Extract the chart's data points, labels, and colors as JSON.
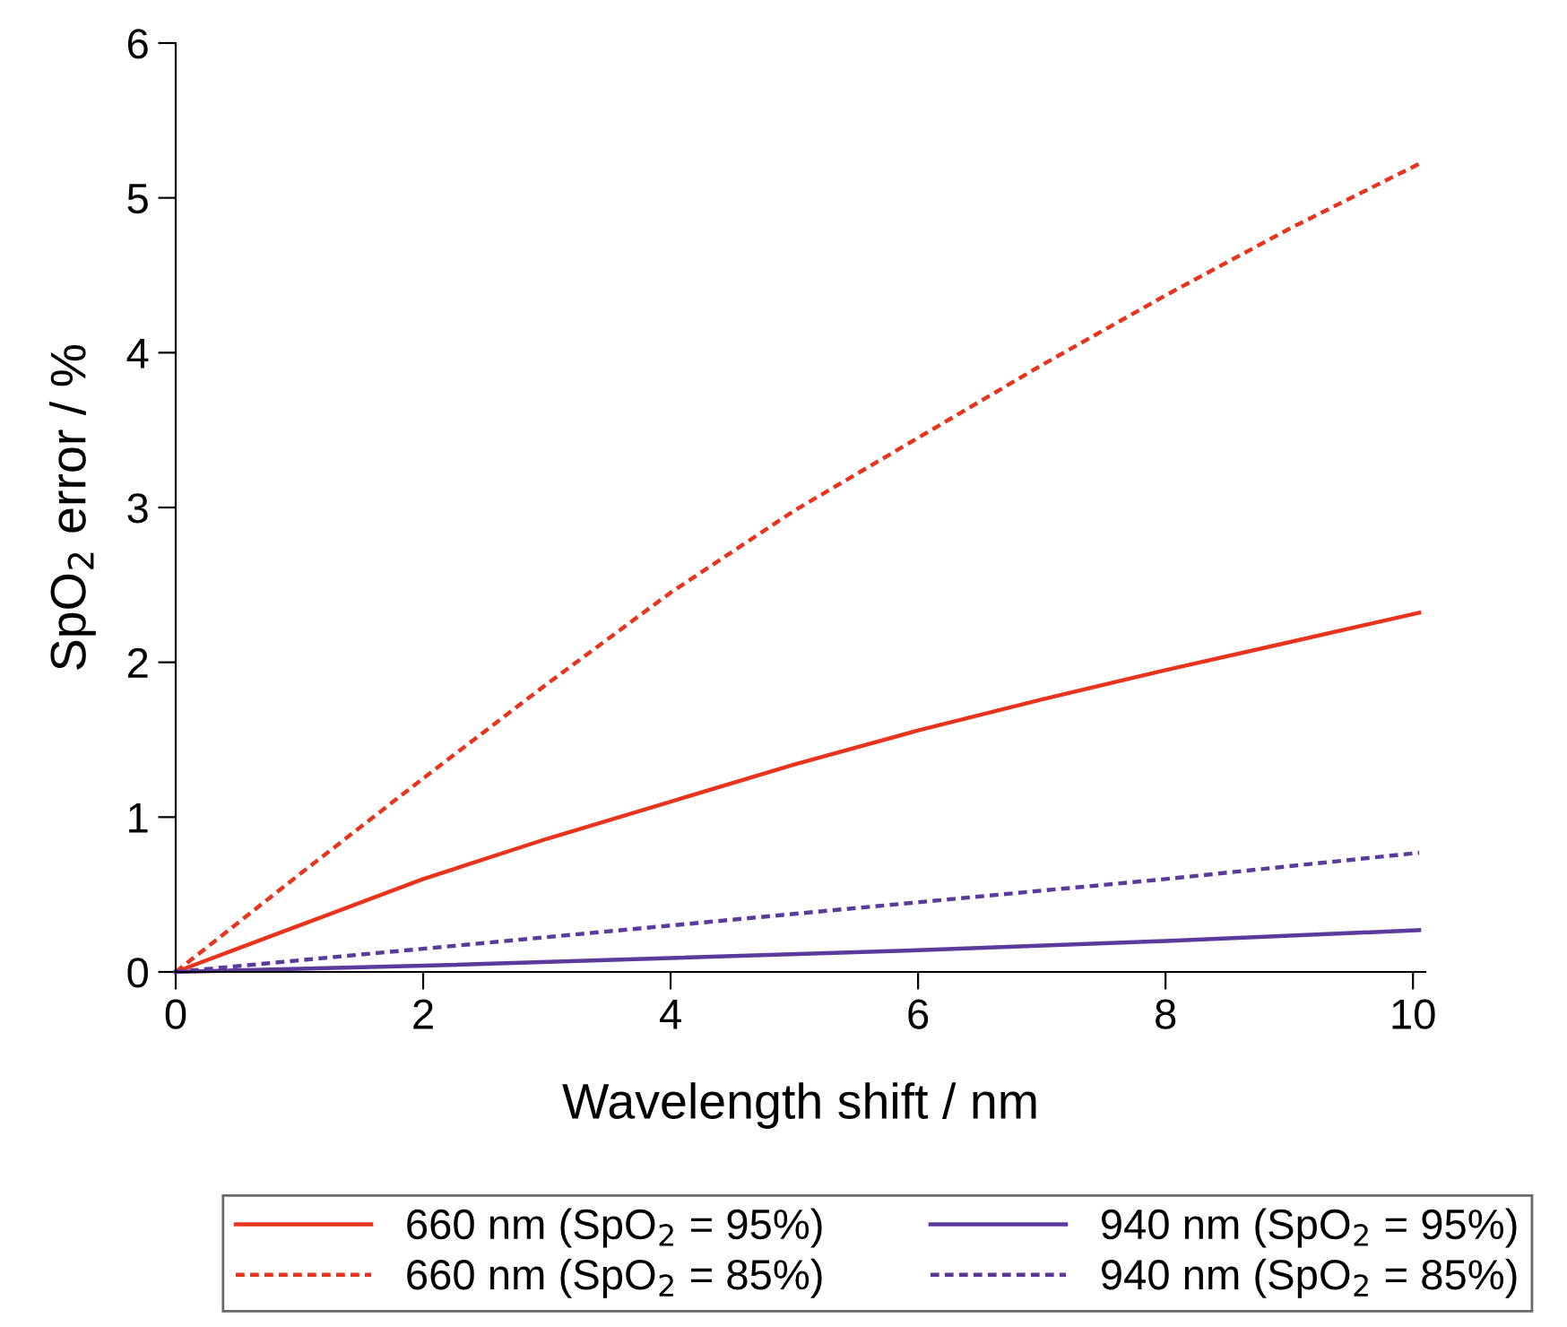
{
  "chart_data": {
    "type": "line",
    "xlabel": "Wavelength shift / nm",
    "ylabel": "SpO$_{2}$ error / %",
    "xlim": [
      0,
      10.1
    ],
    "xticks": [
      0,
      2,
      4,
      6,
      8,
      10
    ],
    "ylim": [
      0,
      6
    ],
    "yticks": [
      0,
      1,
      2,
      3,
      4,
      5,
      6
    ],
    "grid": false,
    "legend": "bottom",
    "marker": "none",
    "series": [
      {
        "name": "660 nm (SpO$_{2}$ = 95%)",
        "color": "#e8341c",
        "line_style": "solid",
        "x": [
          0,
          1,
          2,
          3,
          4,
          5,
          6,
          7,
          8,
          9,
          10.05
        ],
        "values": [
          0,
          0.3,
          0.6,
          0.86,
          1.1,
          1.34,
          1.56,
          1.76,
          1.95,
          2.13,
          2.32
        ]
      },
      {
        "name": "660 nm (SpO$_{2}$ = 85%)",
        "color": "#e8341c",
        "line_style": "dashed",
        "x": [
          0,
          1,
          2,
          3,
          4,
          5,
          6,
          7,
          8,
          9,
          10.05
        ],
        "values": [
          0,
          0.63,
          1.25,
          1.86,
          2.45,
          2.98,
          3.45,
          3.92,
          4.37,
          4.8,
          5.22
        ]
      },
      {
        "name": "940 nm (SpO$_{2}$ = 95%)",
        "color": "#5b3a9b",
        "line_style": "solid",
        "x": [
          0,
          2,
          4,
          6,
          8,
          10.05
        ],
        "values": [
          0,
          0.04,
          0.09,
          0.14,
          0.2,
          0.27
        ]
      },
      {
        "name": "940 nm (SpO$_{2}$ = 85%)",
        "color": "#5b3a9b",
        "line_style": "dashed",
        "x": [
          0,
          2,
          4,
          6,
          8,
          10.05
        ],
        "values": [
          0,
          0.15,
          0.3,
          0.45,
          0.6,
          0.77
        ]
      }
    ]
  }
}
